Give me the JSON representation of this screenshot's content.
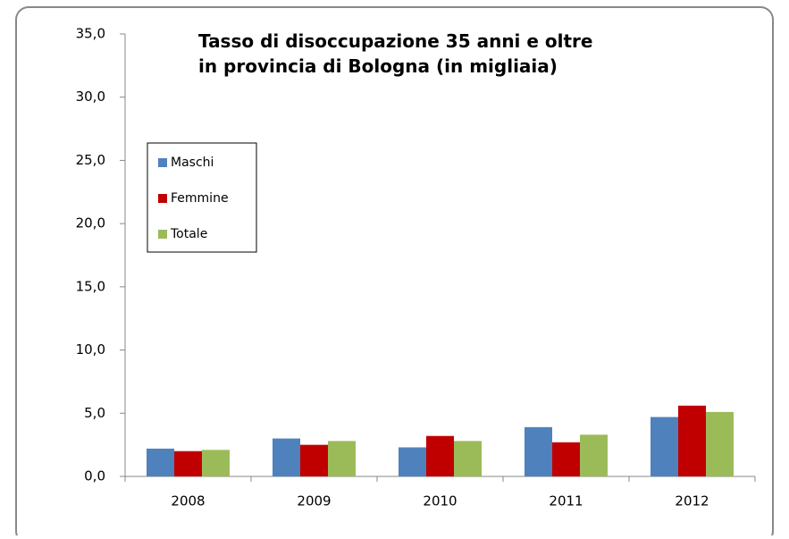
{
  "chart_data": {
    "type": "bar",
    "title": [
      "Tasso di disoccupazione 35 anni  e oltre",
      "in provincia di Bologna (in migliaia)"
    ],
    "categories": [
      "2008",
      "2009",
      "2010",
      "2011",
      "2012"
    ],
    "series": [
      {
        "name": "Maschi",
        "color": "#4f81bd",
        "values": [
          2.2,
          3.0,
          2.3,
          3.9,
          4.7
        ]
      },
      {
        "name": "Femmine",
        "color": "#c00000",
        "values": [
          2.0,
          2.5,
          3.2,
          2.7,
          5.6
        ]
      },
      {
        "name": "Totale",
        "color": "#9bbb59",
        "values": [
          2.1,
          2.8,
          2.8,
          3.3,
          5.1
        ]
      }
    ],
    "ylim": [
      0,
      35
    ],
    "yticks": [
      {
        "value": 0,
        "label": "0,0"
      },
      {
        "value": 5,
        "label": "5,0"
      },
      {
        "value": 10,
        "label": "10,0"
      },
      {
        "value": 15,
        "label": "15,0"
      },
      {
        "value": 20,
        "label": "20,0"
      },
      {
        "value": 25,
        "label": "25,0"
      },
      {
        "value": 30,
        "label": "30,0"
      },
      {
        "value": 35,
        "label": "35,0"
      }
    ],
    "grid": false,
    "legend": "left"
  }
}
